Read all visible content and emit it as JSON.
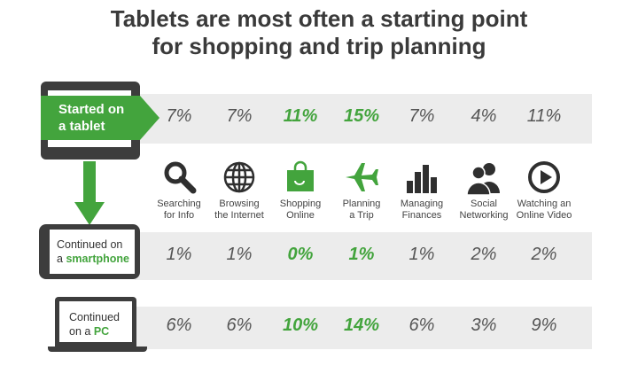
{
  "chart_data": {
    "type": "table",
    "title": "Tablets are most often a starting point for shopping and trip planning",
    "title_lines": [
      "Tablets are most often a starting point",
      "for shopping and trip planning"
    ],
    "categories": [
      "Searching for Info",
      "Browsing the Internet",
      "Shopping Online",
      "Planning a Trip",
      "Managing Finances",
      "Social Networking",
      "Watching an Online Video"
    ],
    "category_lines": [
      [
        "Searching",
        "for Info"
      ],
      [
        "Browsing",
        "the Internet"
      ],
      [
        "Shopping",
        "Online"
      ],
      [
        "Planning",
        "a Trip"
      ],
      [
        "Managing",
        "Finances"
      ],
      [
        "Social",
        "Networking"
      ],
      [
        "Watching an",
        "Online Video"
      ]
    ],
    "category_icons": [
      "magnifier-icon",
      "globe-icon",
      "shopping-bag-icon",
      "airplane-icon",
      "bar-chart-icon",
      "people-icon",
      "play-icon"
    ],
    "highlight_columns": [
      2,
      3
    ],
    "series": [
      {
        "name": "Started on a tablet",
        "label_lines": [
          "Started on",
          "a tablet"
        ],
        "values": [
          7,
          7,
          11,
          15,
          7,
          4,
          11
        ]
      },
      {
        "name": "Continued on a smartphone",
        "label_pre": "Continued on",
        "label_pre2": "a",
        "label_hl": "smartphone",
        "values": [
          1,
          1,
          0,
          1,
          1,
          2,
          2
        ]
      },
      {
        "name": "Continued on a PC",
        "label_pre": "Continued",
        "label_pre2": "on a",
        "label_hl": "PC",
        "values": [
          6,
          6,
          10,
          14,
          6,
          3,
          9
        ]
      }
    ],
    "unit": "%"
  },
  "colors": {
    "accent": "#43a43d",
    "device": "#3d3d3d",
    "band": "#ececec",
    "text": "#555555"
  }
}
